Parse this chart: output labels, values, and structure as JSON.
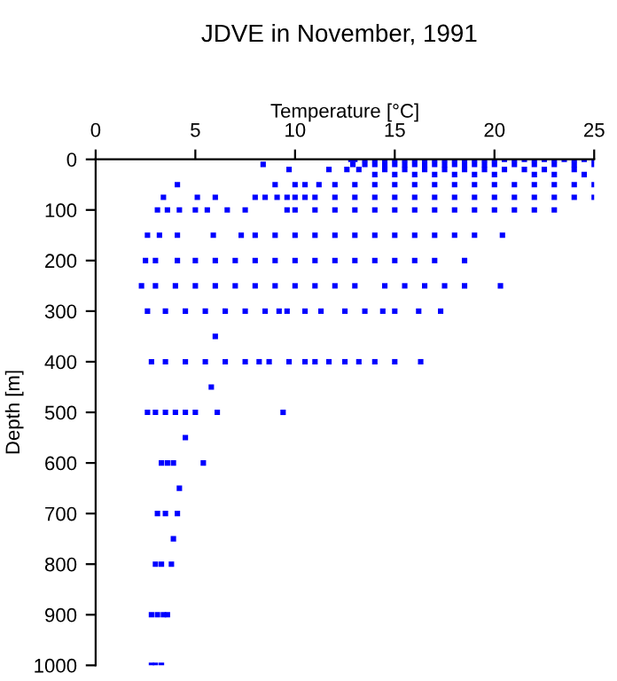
{
  "chart_data": {
    "type": "scatter",
    "title": "JDVE in November, 1991",
    "xlabel": "Temperature [°C]",
    "ylabel": "Depth [m]",
    "xlim": [
      0,
      25
    ],
    "xticks": [
      0,
      5,
      10,
      15,
      20,
      25
    ],
    "ylim": [
      1000,
      0
    ],
    "yticks": [
      0,
      100,
      200,
      300,
      400,
      500,
      600,
      700,
      800,
      900,
      1000
    ],
    "marker": "square",
    "grid": false,
    "legend": false,
    "series": [
      {
        "color": "#0000ff",
        "x": [
          12.8,
          13,
          13.5,
          14,
          14.5,
          15,
          15.5,
          16,
          16.5,
          17,
          17.5,
          18,
          18.5,
          19,
          19.5,
          20,
          20.5,
          21,
          21.5,
          22,
          22.5,
          23,
          23.5,
          24,
          24.5,
          25
        ],
        "values": [
          0,
          0,
          0,
          0,
          0,
          0,
          0,
          0,
          0,
          0,
          0,
          0,
          0,
          0,
          0,
          0,
          0,
          0,
          0,
          0,
          0,
          0,
          0,
          0,
          0,
          0
        ]
      },
      {
        "color": "#0000ff",
        "x": [
          8.4,
          12.9,
          13.5,
          14,
          14.5,
          15,
          15.5,
          16,
          16.5,
          17,
          17.5,
          18,
          18.5,
          19,
          19.5,
          20,
          21,
          22,
          23,
          24,
          25
        ],
        "values": [
          10,
          10,
          10,
          10,
          10,
          10,
          10,
          10,
          10,
          10,
          10,
          10,
          10,
          10,
          10,
          10,
          10,
          10,
          10,
          10,
          10
        ]
      },
      {
        "color": "#0000ff",
        "x": [
          9.7,
          11.7,
          12.6,
          13.2,
          14.5,
          15.5,
          16.5,
          17.5,
          18.5,
          19.5,
          20.5,
          21.5,
          22.5,
          24
        ],
        "values": [
          20,
          20,
          20,
          20,
          20,
          20,
          20,
          20,
          20,
          20,
          20,
          20,
          20,
          20
        ]
      },
      {
        "color": "#0000ff",
        "x": [
          14,
          15,
          16,
          17,
          18,
          19,
          20,
          22,
          23,
          24.5
        ],
        "values": [
          30,
          30,
          30,
          30,
          30,
          30,
          30,
          30,
          30,
          30
        ]
      },
      {
        "color": "#0000ff",
        "x": [
          4.1,
          9.0,
          10.0,
          10.5,
          11.2,
          12,
          13,
          14,
          15,
          16,
          17,
          18,
          19,
          20,
          21,
          22,
          23,
          24,
          25
        ],
        "values": [
          50,
          50,
          50,
          50,
          50,
          50,
          50,
          50,
          50,
          50,
          50,
          50,
          50,
          50,
          50,
          50,
          50,
          50,
          50
        ]
      },
      {
        "color": "#0000ff",
        "x": [
          3.4,
          5.1,
          6.0,
          8.0,
          8.5,
          9.1,
          9.6,
          10,
          10.5,
          11,
          12,
          13,
          14,
          15,
          16,
          17,
          18,
          19,
          20,
          21,
          22,
          23,
          24,
          25
        ],
        "values": [
          75,
          75,
          75,
          75,
          75,
          75,
          75,
          75,
          75,
          75,
          75,
          75,
          75,
          75,
          75,
          75,
          75,
          75,
          75,
          75,
          75,
          75,
          75,
          75
        ]
      },
      {
        "color": "#0000ff",
        "x": [
          3.1,
          3.6,
          4.2,
          5.0,
          5.6,
          6.6,
          7.5,
          9.6,
          10,
          11,
          12,
          13,
          14,
          15,
          16,
          17,
          18,
          19,
          20,
          21,
          22,
          23
        ],
        "values": [
          100,
          100,
          100,
          100,
          100,
          100,
          100,
          100,
          100,
          100,
          100,
          100,
          100,
          100,
          100,
          100,
          100,
          100,
          100,
          100,
          100,
          100
        ]
      },
      {
        "color": "#0000ff",
        "x": [
          2.6,
          3.2,
          4.1,
          5.9,
          7.3,
          8,
          9,
          10,
          11,
          12,
          13,
          14,
          15,
          16,
          17,
          18,
          19,
          20.4
        ],
        "values": [
          150,
          150,
          150,
          150,
          150,
          150,
          150,
          150,
          150,
          150,
          150,
          150,
          150,
          150,
          150,
          150,
          150,
          150
        ]
      },
      {
        "color": "#0000ff",
        "x": [
          2.5,
          3,
          4.1,
          5,
          6,
          7,
          8,
          9,
          10,
          11,
          12,
          13,
          14,
          15,
          16,
          17,
          18.5
        ],
        "values": [
          200,
          200,
          200,
          200,
          200,
          200,
          200,
          200,
          200,
          200,
          200,
          200,
          200,
          200,
          200,
          200,
          200
        ]
      },
      {
        "color": "#0000ff",
        "x": [
          2.3,
          3,
          4,
          5,
          6,
          7,
          8,
          9,
          10,
          11,
          12,
          13,
          14.5,
          15.5,
          16.5,
          17.5,
          18.5,
          20.3
        ],
        "values": [
          250,
          250,
          250,
          250,
          250,
          250,
          250,
          250,
          250,
          250,
          250,
          250,
          250,
          250,
          250,
          250,
          250,
          250
        ]
      },
      {
        "color": "#0000ff",
        "x": [
          2.6,
          3.5,
          4.5,
          5.5,
          6.5,
          7.5,
          8.5,
          9.2,
          9.6,
          10.5,
          11.3,
          12.5,
          13.5,
          14.4,
          15,
          16.2,
          17.3
        ],
        "values": [
          300,
          300,
          300,
          300,
          300,
          300,
          300,
          300,
          300,
          300,
          300,
          300,
          300,
          300,
          300,
          300,
          300
        ]
      },
      {
        "color": "#0000ff",
        "x": [
          6.0,
          5.8,
          4.5,
          4.2,
          3.9
        ],
        "values": [
          350,
          450,
          550,
          650,
          750
        ]
      },
      {
        "color": "#0000ff",
        "x": [
          2.8,
          3.5,
          4.5,
          5.5,
          6.5,
          7.5,
          8.2,
          8.7,
          9.7,
          10.5,
          11,
          11.7,
          12.5,
          13.2,
          14,
          15,
          16.3
        ],
        "values": [
          400,
          400,
          400,
          400,
          400,
          400,
          400,
          400,
          400,
          400,
          400,
          400,
          400,
          400,
          400,
          400,
          400
        ]
      },
      {
        "color": "#0000ff",
        "x": [
          2.6,
          3,
          3.5,
          4,
          4.5,
          5,
          6.1,
          9.4
        ],
        "values": [
          500,
          500,
          500,
          500,
          500,
          500,
          500,
          500
        ]
      },
      {
        "color": "#0000ff",
        "x": [
          3.3,
          3.6,
          3.9,
          5.4,
          3.1,
          3.5,
          4.1,
          3.0,
          3.3,
          3.8
        ],
        "values": [
          600,
          600,
          600,
          600,
          700,
          700,
          700,
          800,
          800,
          800
        ]
      },
      {
        "color": "#0000ff",
        "x": [
          2.8,
          3.1,
          3.4,
          3.6,
          2.8,
          3.0,
          3.3
        ],
        "values": [
          900,
          900,
          900,
          900,
          1000,
          1000,
          1000
        ]
      }
    ]
  }
}
